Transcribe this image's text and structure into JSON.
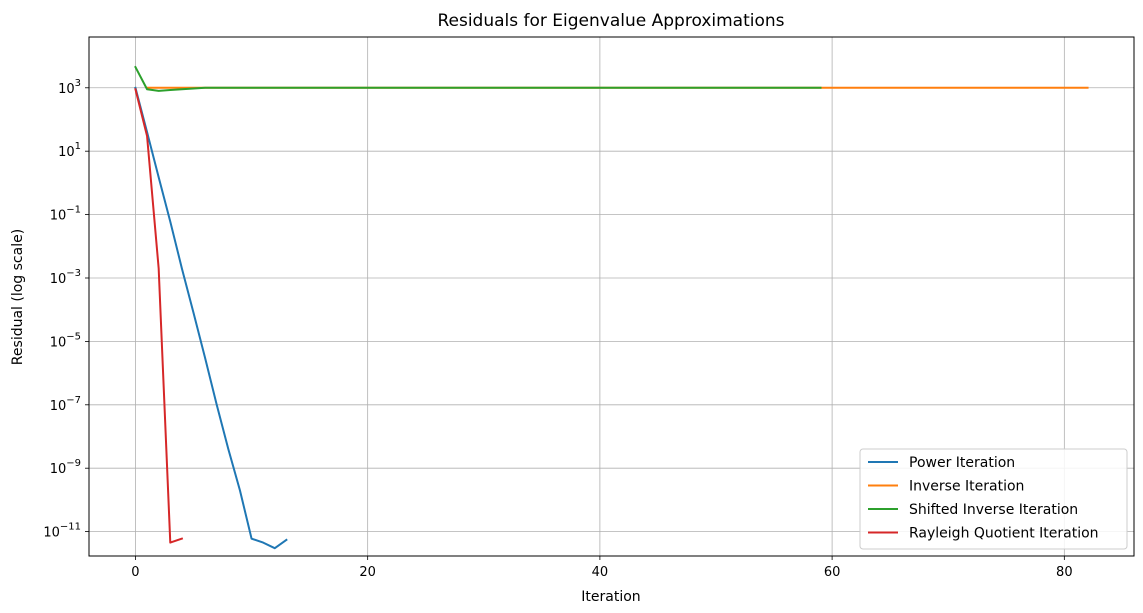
{
  "chart_data": {
    "type": "line",
    "title": "Residuals for Eigenvalue Approximations",
    "xlabel": "Iteration",
    "ylabel": "Residual (log scale)",
    "y_scale": "log",
    "xlim": [
      -4,
      86
    ],
    "ylim": [
      1.7e-12,
      40000
    ],
    "x_ticks": [
      0,
      20,
      40,
      60,
      80
    ],
    "y_ticks": [
      {
        "value": 1000.0,
        "base": "10",
        "exp": "3"
      },
      {
        "value": 10.0,
        "base": "10",
        "exp": "1"
      },
      {
        "value": 0.1,
        "base": "10",
        "exp": "−1"
      },
      {
        "value": 0.001,
        "base": "10",
        "exp": "−3"
      },
      {
        "value": 1e-05,
        "base": "10",
        "exp": "−5"
      },
      {
        "value": 1e-07,
        "base": "10",
        "exp": "−7"
      },
      {
        "value": 1e-09,
        "base": "10",
        "exp": "−9"
      },
      {
        "value": 1e-11,
        "base": "10",
        "exp": "−11"
      }
    ],
    "grid": true,
    "legend_position": "bottom-right",
    "series": [
      {
        "name": "Power Iteration",
        "color": "#1f77b4",
        "x": [
          0,
          1,
          2,
          3,
          4,
          5,
          6,
          7,
          8,
          9,
          10,
          11,
          12,
          13
        ],
        "y": [
          1000,
          40,
          1.5,
          0.06,
          0.002,
          8e-05,
          3e-06,
          1e-07,
          4e-09,
          2e-10,
          6e-12,
          4.5e-12,
          3e-12,
          5.5e-12
        ]
      },
      {
        "name": "Inverse Iteration",
        "color": "#ff7f0e",
        "x": [
          1,
          5,
          10,
          20,
          30,
          40,
          50,
          59,
          60,
          70,
          80,
          82
        ],
        "y": [
          1000,
          1000,
          1000,
          1000,
          1000,
          1000,
          1000,
          1000,
          1000,
          1000,
          1000,
          1000
        ]
      },
      {
        "name": "Shifted Inverse Iteration",
        "color": "#2ca02c",
        "x": [
          0,
          1,
          2,
          3,
          4,
          5,
          6,
          7,
          10,
          20,
          30,
          40,
          50,
          59
        ],
        "y": [
          4500,
          900,
          800,
          850,
          900,
          950,
          1000,
          1000,
          1000,
          1000,
          1000,
          1000,
          1000,
          1000
        ]
      },
      {
        "name": "Rayleigh Quotient Iteration",
        "color": "#d62728",
        "x": [
          0,
          1,
          2,
          3,
          4
        ],
        "y": [
          900,
          30,
          0.002,
          4.5e-12,
          6e-12
        ]
      }
    ]
  }
}
